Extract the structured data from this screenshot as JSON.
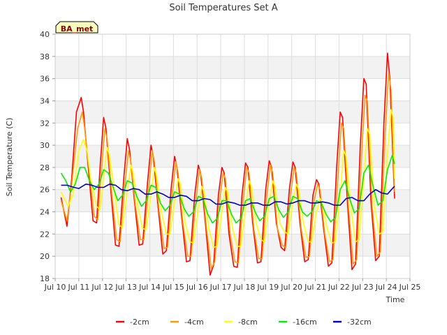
{
  "chart_data": {
    "type": "line",
    "title": "Soil Temperatures Set A",
    "xlabel": "Time",
    "ylabel": "Soil Temperature (C)",
    "site_label": "BA_met",
    "xlim": [
      10,
      25
    ],
    "ylim": [
      18,
      40
    ],
    "x_ticks": [
      10,
      11,
      12,
      13,
      14,
      15,
      16,
      17,
      18,
      19,
      20,
      21,
      22,
      23,
      24,
      25
    ],
    "x_tick_labels": [
      "Jul 10",
      "Jul 11",
      "Jul 12",
      "Jul 13",
      "Jul 14",
      "Jul 15",
      "Jul 16",
      "Jul 17",
      "Jul 18",
      "Jul 19",
      "Jul 20",
      "Jul 21",
      "Jul 22",
      "Jul 23",
      "Jul 24",
      "Jul 25"
    ],
    "y_ticks": [
      18,
      20,
      22,
      24,
      26,
      28,
      30,
      32,
      34,
      36,
      38,
      40
    ],
    "y_tick_labels": [
      "18",
      "20",
      "22",
      "24",
      "26",
      "28",
      "30",
      "32",
      "34",
      "36",
      "38",
      "40"
    ],
    "grid": true,
    "legend_position": "bottom",
    "x_units": "day of July",
    "series": [
      {
        "name": "-2cm",
        "color": "#ff0000",
        "x": [
          10.25,
          10.5,
          10.7,
          10.9,
          11.1,
          11.2,
          11.4,
          11.6,
          11.75,
          11.9,
          12.05,
          12.15,
          12.35,
          12.55,
          12.7,
          12.9,
          13.05,
          13.15,
          13.35,
          13.55,
          13.7,
          13.9,
          14.05,
          14.15,
          14.35,
          14.55,
          14.7,
          14.9,
          15.05,
          15.15,
          15.35,
          15.55,
          15.7,
          15.9,
          16.05,
          16.15,
          16.35,
          16.55,
          16.7,
          16.9,
          17.05,
          17.15,
          17.35,
          17.55,
          17.7,
          17.9,
          18.05,
          18.15,
          18.35,
          18.55,
          18.7,
          18.9,
          19.05,
          19.15,
          19.35,
          19.55,
          19.7,
          19.9,
          20.05,
          20.15,
          20.35,
          20.55,
          20.7,
          20.9,
          21.05,
          21.15,
          21.35,
          21.55,
          21.7,
          21.9,
          22.05,
          22.15,
          22.35,
          22.55,
          22.7,
          22.9,
          23.05,
          23.15,
          23.35,
          23.55,
          23.7,
          23.9,
          24.05,
          24.15,
          24.35
        ],
        "y": [
          25.3,
          22.7,
          27,
          33,
          34.3,
          33,
          28,
          23.2,
          23,
          28,
          32.5,
          31.5,
          26,
          21,
          20.9,
          27,
          30.6,
          29.5,
          25,
          21,
          21.1,
          26.5,
          30,
          29,
          24.5,
          20.2,
          20.5,
          26,
          29,
          28,
          23.5,
          19.5,
          19.6,
          25.5,
          28.2,
          27.5,
          23,
          18.3,
          19.2,
          25.5,
          28,
          27.5,
          22,
          19.1,
          19,
          25.5,
          28.4,
          28,
          23,
          19.4,
          19.5,
          26,
          28.6,
          28,
          23,
          20.8,
          20.5,
          26,
          28.5,
          28,
          23,
          19.5,
          19.7,
          25.5,
          26.9,
          26.5,
          22.5,
          19.1,
          19.4,
          28,
          33,
          32.5,
          25,
          18.8,
          19.3,
          30,
          36,
          35.5,
          25,
          19.6,
          20,
          32,
          38.3,
          36,
          25.2
        ]
      },
      {
        "name": "-4cm",
        "color": "#ff9900",
        "x": [
          10.25,
          10.5,
          10.7,
          10.95,
          11.15,
          11.25,
          11.45,
          11.65,
          11.8,
          11.95,
          12.1,
          12.2,
          12.4,
          12.6,
          12.75,
          12.95,
          13.1,
          13.2,
          13.4,
          13.6,
          13.75,
          13.95,
          14.1,
          14.2,
          14.4,
          14.6,
          14.75,
          14.95,
          15.1,
          15.2,
          15.4,
          15.6,
          15.75,
          15.95,
          16.1,
          16.2,
          16.4,
          16.6,
          16.75,
          16.95,
          17.1,
          17.2,
          17.4,
          17.6,
          17.75,
          17.95,
          18.1,
          18.2,
          18.4,
          18.6,
          18.75,
          18.95,
          19.1,
          19.2,
          19.4,
          19.6,
          19.75,
          19.95,
          20.1,
          20.2,
          20.4,
          20.6,
          20.75,
          20.95,
          21.1,
          21.2,
          21.4,
          21.6,
          21.75,
          21.95,
          22.1,
          22.2,
          22.4,
          22.6,
          22.75,
          22.95,
          23.1,
          23.2,
          23.4,
          23.6,
          23.75,
          23.95,
          24.1,
          24.2,
          24.35
        ],
        "y": [
          25,
          23.2,
          26.5,
          31.5,
          33,
          31.5,
          27.5,
          23.6,
          23.3,
          27.5,
          31.5,
          30.5,
          25.5,
          21.5,
          21.3,
          26.5,
          29.5,
          28.5,
          24.5,
          21.5,
          21.5,
          26,
          29.5,
          28.5,
          24,
          20.7,
          20.8,
          25.5,
          28.5,
          27.5,
          23,
          20,
          20,
          25,
          27.8,
          27,
          22.5,
          18.9,
          19.5,
          25,
          27.5,
          27,
          22,
          19.5,
          19.4,
          25,
          28,
          27.5,
          22.5,
          19.8,
          19.8,
          25.5,
          28.2,
          27.5,
          22.5,
          21,
          20.8,
          25.5,
          28,
          27.5,
          22.5,
          19.9,
          20,
          25,
          26.5,
          26,
          22,
          19.5,
          19.7,
          27,
          32,
          31.5,
          24.5,
          19.3,
          19.7,
          29,
          34.5,
          34,
          24.5,
          20,
          20.4,
          31,
          36.5,
          35,
          25.8
        ]
      },
      {
        "name": "-8cm",
        "color": "#ffff00",
        "x": [
          10.25,
          10.55,
          10.75,
          11.0,
          11.2,
          11.35,
          11.5,
          11.75,
          11.9,
          12.05,
          12.2,
          12.3,
          12.5,
          12.7,
          12.85,
          13.05,
          13.2,
          13.3,
          13.5,
          13.7,
          13.85,
          14.05,
          14.2,
          14.3,
          14.5,
          14.7,
          14.85,
          15.05,
          15.2,
          15.3,
          15.5,
          15.7,
          15.85,
          16.05,
          16.2,
          16.3,
          16.5,
          16.7,
          16.85,
          17.05,
          17.2,
          17.3,
          17.5,
          17.7,
          17.85,
          18.05,
          18.2,
          18.3,
          18.5,
          18.7,
          18.85,
          19.05,
          19.2,
          19.3,
          19.5,
          19.7,
          19.85,
          20.05,
          20.2,
          20.3,
          20.5,
          20.7,
          20.85,
          21.05,
          21.2,
          21.3,
          21.5,
          21.7,
          21.85,
          22.05,
          22.2,
          22.3,
          22.5,
          22.7,
          22.85,
          23.05,
          23.2,
          23.3,
          23.5,
          23.7,
          23.85,
          24.05,
          24.2,
          24.3,
          24.35
        ],
        "y": [
          25.8,
          24.5,
          25.5,
          29.5,
          30.5,
          29.5,
          27,
          24.5,
          24.2,
          27,
          29.8,
          29,
          26,
          22.8,
          22.6,
          25.8,
          28.2,
          27.5,
          24.5,
          22.5,
          22.4,
          25.5,
          28,
          27.2,
          24,
          22,
          22,
          24.8,
          27,
          26.5,
          23,
          21.3,
          21.2,
          24.2,
          26.3,
          25.8,
          22.5,
          20.8,
          20.9,
          24,
          26.2,
          25.8,
          22.5,
          20.9,
          20.9,
          24.3,
          26.8,
          26.3,
          23,
          21.5,
          21.3,
          24.8,
          26.8,
          26.3,
          23,
          22.2,
          22,
          24.8,
          26.5,
          26,
          23,
          21.3,
          21.3,
          24,
          25.2,
          24.8,
          22.5,
          21.2,
          21.3,
          25.5,
          29.5,
          29,
          24.5,
          21.3,
          21.5,
          27,
          31.5,
          31,
          24.5,
          22,
          22.2,
          29,
          33.2,
          32.5,
          27
        ]
      },
      {
        "name": "-16cm",
        "color": "#00ee00",
        "x": [
          10.25,
          10.45,
          10.65,
          10.85,
          11.05,
          11.25,
          11.45,
          11.65,
          11.85,
          12.05,
          12.25,
          12.45,
          12.65,
          12.85,
          13.05,
          13.25,
          13.45,
          13.65,
          13.85,
          14.05,
          14.25,
          14.45,
          14.65,
          14.85,
          15.05,
          15.25,
          15.45,
          15.65,
          15.85,
          16.05,
          16.25,
          16.45,
          16.65,
          16.85,
          17.05,
          17.25,
          17.45,
          17.65,
          17.85,
          18.05,
          18.25,
          18.45,
          18.65,
          18.85,
          19.05,
          19.25,
          19.45,
          19.65,
          19.85,
          20.05,
          20.25,
          20.45,
          20.65,
          20.85,
          21.05,
          21.25,
          21.45,
          21.65,
          21.85,
          22.05,
          22.25,
          22.45,
          22.65,
          22.85,
          23.05,
          23.25,
          23.45,
          23.65,
          23.85,
          24.05,
          24.25,
          24.35
        ],
        "y": [
          27.5,
          26.8,
          25.8,
          26.5,
          28,
          28,
          26.8,
          26,
          26.5,
          27.8,
          27.5,
          26.2,
          25,
          25.5,
          26.8,
          26.6,
          25.4,
          24.5,
          25,
          26.4,
          26.2,
          24.8,
          24.1,
          24.6,
          25.8,
          25.6,
          24.3,
          23.6,
          24,
          25.4,
          25.2,
          23.8,
          23,
          23.4,
          25,
          25,
          23.8,
          23,
          23.4,
          25,
          25.2,
          24,
          23.2,
          23.6,
          25.2,
          25.4,
          24.2,
          23.5,
          24,
          25.4,
          25.2,
          24,
          23.6,
          24,
          25,
          24.8,
          23.8,
          23.1,
          23.5,
          26,
          26.8,
          25.2,
          23.9,
          24.3,
          27.5,
          28.2,
          26.2,
          24.6,
          25,
          27.8,
          29.1,
          28.3
        ]
      },
      {
        "name": "-32cm",
        "color": "#0000cc",
        "x": [
          10.25,
          10.5,
          10.8,
          11.0,
          11.3,
          11.55,
          11.8,
          12.05,
          12.3,
          12.55,
          12.8,
          13.05,
          13.3,
          13.55,
          13.8,
          14.05,
          14.3,
          14.55,
          14.8,
          15.05,
          15.3,
          15.55,
          15.8,
          16.05,
          16.3,
          16.55,
          16.8,
          17.05,
          17.3,
          17.55,
          17.8,
          18.05,
          18.3,
          18.55,
          18.8,
          19.05,
          19.3,
          19.55,
          19.8,
          20.05,
          20.3,
          20.55,
          20.8,
          21.05,
          21.3,
          21.55,
          21.8,
          22.05,
          22.3,
          22.55,
          22.8,
          23.05,
          23.3,
          23.55,
          23.8,
          24.05,
          24.3,
          24.35
        ],
        "y": [
          26.4,
          26.4,
          26.2,
          26.1,
          26.5,
          26.4,
          26.2,
          26.2,
          26.5,
          26.4,
          26.0,
          25.9,
          26.1,
          26.0,
          25.6,
          25.6,
          25.8,
          25.6,
          25.3,
          25.3,
          25.5,
          25.4,
          25.0,
          25.0,
          25.2,
          25.1,
          24.7,
          24.7,
          24.9,
          24.8,
          24.6,
          24.6,
          24.8,
          24.8,
          24.6,
          24.6,
          24.9,
          24.9,
          24.7,
          24.8,
          25.0,
          25.0,
          24.8,
          24.8,
          24.9,
          24.8,
          24.6,
          24.6,
          25.2,
          25.3,
          25.0,
          25.0,
          25.6,
          26.0,
          25.7,
          25.6,
          26.2,
          26.3
        ]
      }
    ]
  }
}
